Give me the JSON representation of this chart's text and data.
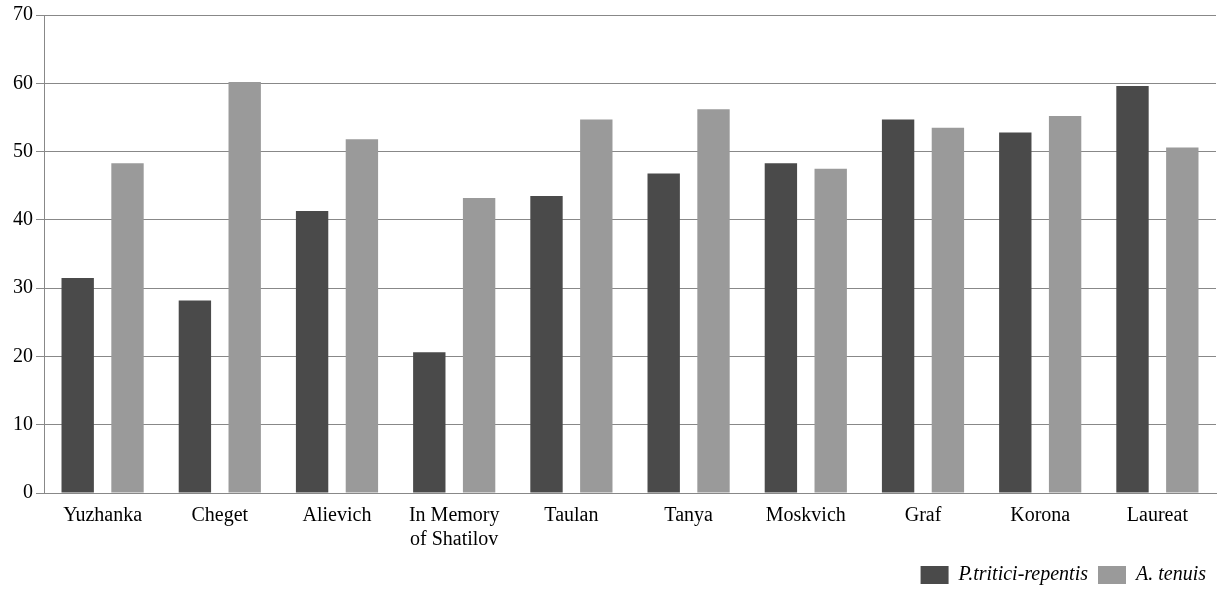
{
  "chart_data": {
    "type": "bar",
    "categories": [
      "Yuzhanka",
      "Cheget",
      "Alievich",
      "In Memory of Shatilov",
      "Taulan",
      "Tanya",
      "Moskvich",
      "Graf",
      "Korona",
      "Laureat"
    ],
    "series": [
      {
        "name": "P.tritici-repentis",
        "color": "#4a4a4a",
        "values": [
          31.5,
          28.2,
          41.3,
          20.6,
          43.5,
          46.8,
          48.3,
          54.7,
          52.8,
          59.6
        ]
      },
      {
        "name": "A. tenuis",
        "color": "#9a9a9a",
        "values": [
          48.3,
          60.2,
          51.8,
          43.2,
          54.7,
          56.2,
          47.5,
          53.5,
          55.2,
          50.6
        ]
      }
    ],
    "ylim": [
      0,
      70
    ],
    "yticks": [
      0,
      10,
      20,
      30,
      40,
      50,
      60,
      70
    ],
    "grid": "y",
    "legend": "bottom right"
  }
}
